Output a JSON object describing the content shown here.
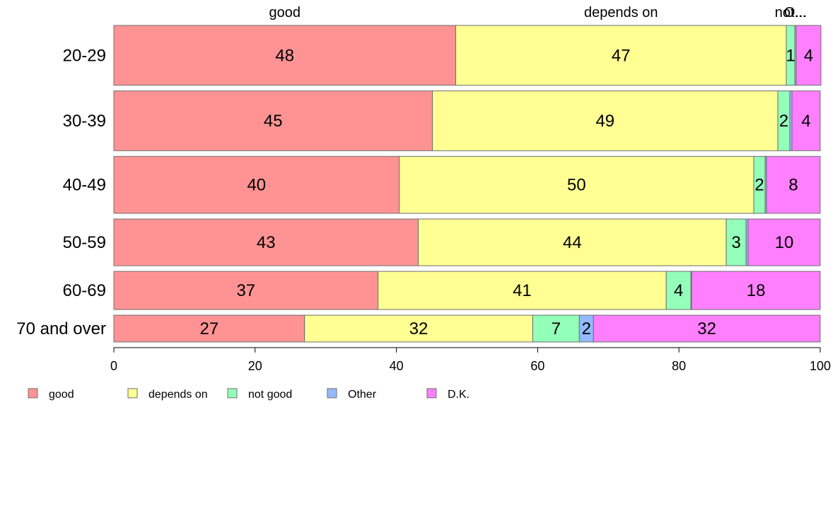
{
  "chart_data": {
    "type": "bar",
    "orientation": "horizontal",
    "stacked": true,
    "percent": true,
    "categories": [
      "20-29",
      "30-39",
      "40-49",
      "50-59",
      "60-69",
      "70 and over"
    ],
    "category_weights": [
      1.05,
      1.05,
      1.0,
      0.82,
      0.67,
      0.47
    ],
    "series": [
      {
        "name": "good",
        "color": "#ff9393",
        "values": [
          48.4,
          45.1,
          40.4,
          43.1,
          37.4,
          27.0
        ]
      },
      {
        "name": "depends on",
        "color": "#ffff93",
        "values": [
          46.8,
          48.9,
          50.2,
          43.6,
          40.8,
          32.3
        ]
      },
      {
        "name": "not good",
        "color": "#93ffb9",
        "values": [
          1.2,
          1.7,
          1.6,
          2.8,
          3.5,
          6.6
        ]
      },
      {
        "name": "Other",
        "color": "#93b9ff",
        "values": [
          0.2,
          0.3,
          0.2,
          0.3,
          0.1,
          2.0
        ]
      },
      {
        "name": "D.K.",
        "color": "#ff7fff",
        "values": [
          3.5,
          4.0,
          7.6,
          10.2,
          18.2,
          32.1
        ]
      }
    ],
    "segment_labels": [
      [
        "48",
        "47",
        "1",
        "",
        "4"
      ],
      [
        "45",
        "49",
        "2",
        "",
        "4"
      ],
      [
        "40",
        "50",
        "2",
        "",
        "8"
      ],
      [
        "43",
        "44",
        "3",
        "",
        "10"
      ],
      [
        "37",
        "41",
        "4",
        "",
        "18"
      ],
      [
        "27",
        "32",
        "7",
        "2",
        "32"
      ]
    ],
    "top_labels": [
      "good",
      "depends on",
      "not...",
      "O..."
    ],
    "xlim": [
      0,
      100
    ],
    "xticks": [
      0,
      20,
      40,
      60,
      80,
      100
    ],
    "legend": {
      "position": "bottom-left",
      "entries": [
        "good",
        "depends on",
        "not good",
        "Other",
        "D.K."
      ]
    },
    "grid": false,
    "title": "",
    "xlabel": "",
    "ylabel": ""
  }
}
